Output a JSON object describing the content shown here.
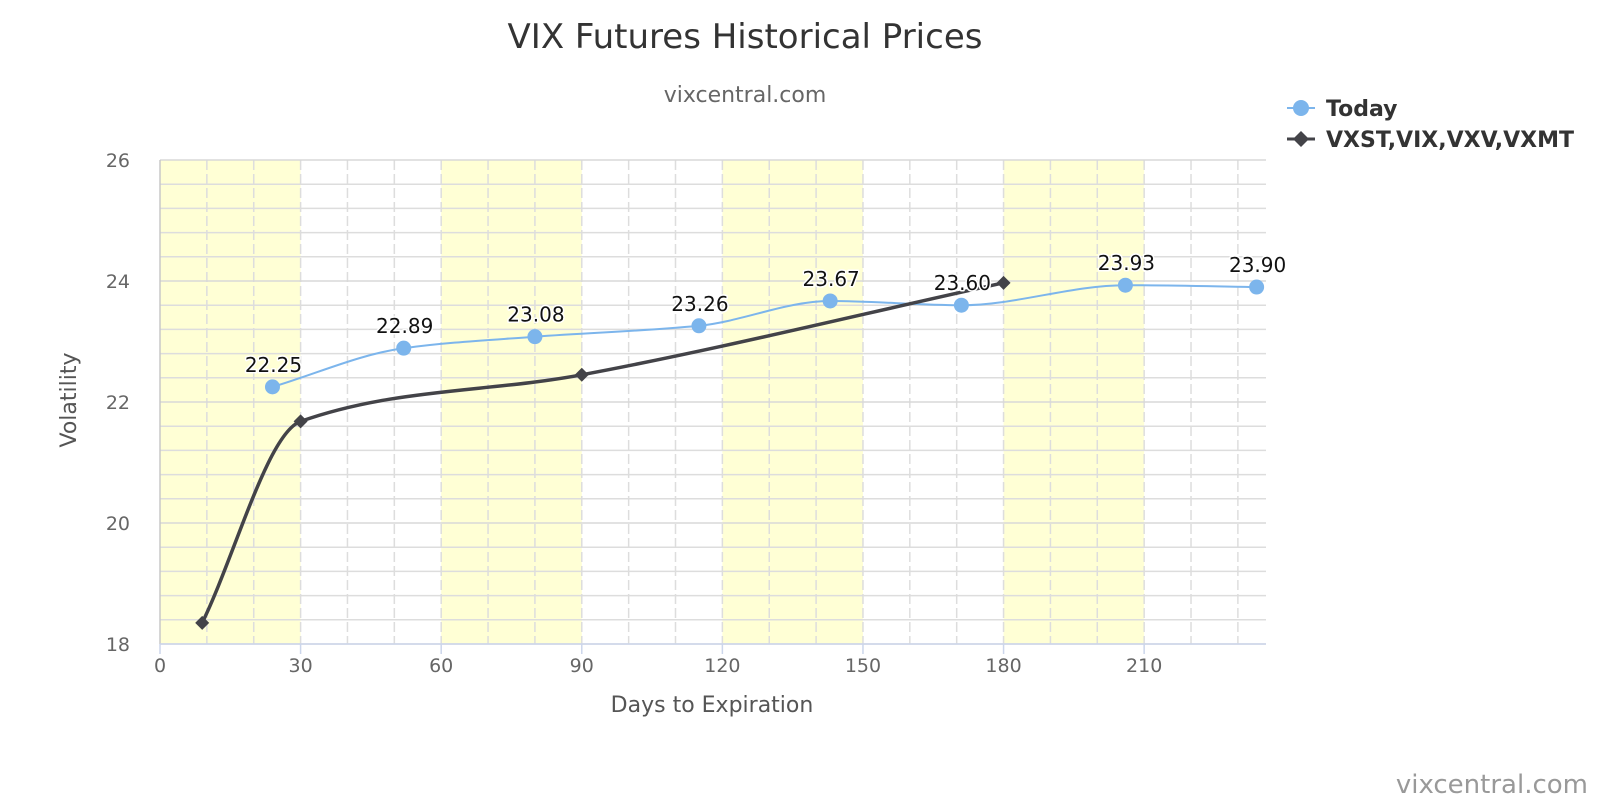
{
  "chart_data": {
    "type": "line",
    "title": "VIX Futures Historical Prices",
    "subtitle": "vixcentral.com",
    "xlabel": "Days to Expiration",
    "ylabel": "Volatility",
    "xlim": [
      0,
      236
    ],
    "ylim": [
      18,
      26
    ],
    "x_ticks": [
      0,
      30,
      60,
      90,
      120,
      150,
      180,
      210
    ],
    "y_ticks": [
      18,
      20,
      22,
      24,
      26
    ],
    "grid": true,
    "legend_position": "top-right",
    "shaded_bands": [
      [
        0,
        30
      ],
      [
        60,
        90
      ],
      [
        120,
        150
      ],
      [
        180,
        210
      ]
    ],
    "series": [
      {
        "name": "Today",
        "color": "#7cb5ec",
        "marker": "circle",
        "data_labels": true,
        "points": [
          {
            "x": 24,
            "y": 22.25,
            "label": "22.25"
          },
          {
            "x": 52,
            "y": 22.89,
            "label": "22.89"
          },
          {
            "x": 80,
            "y": 23.08,
            "label": "23.08"
          },
          {
            "x": 115,
            "y": 23.26,
            "label": "23.26"
          },
          {
            "x": 143,
            "y": 23.67,
            "label": "23.67"
          },
          {
            "x": 171,
            "y": 23.6,
            "label": "23.60"
          },
          {
            "x": 206,
            "y": 23.93,
            "label": "23.93"
          },
          {
            "x": 234,
            "y": 23.9,
            "label": "23.90"
          }
        ]
      },
      {
        "name": "VXST,VIX,VXV,VXMT",
        "color": "#434348",
        "marker": "diamond",
        "data_labels": false,
        "points": [
          {
            "x": 9,
            "y": 18.35
          },
          {
            "x": 30,
            "y": 21.68
          },
          {
            "x": 90,
            "y": 22.45
          },
          {
            "x": 180,
            "y": 23.97
          }
        ]
      }
    ],
    "credit": "vixcentral.com"
  },
  "colors": {
    "band": "#ffffd5",
    "grid": "#dddddd",
    "axis": "#ccd6eb"
  }
}
